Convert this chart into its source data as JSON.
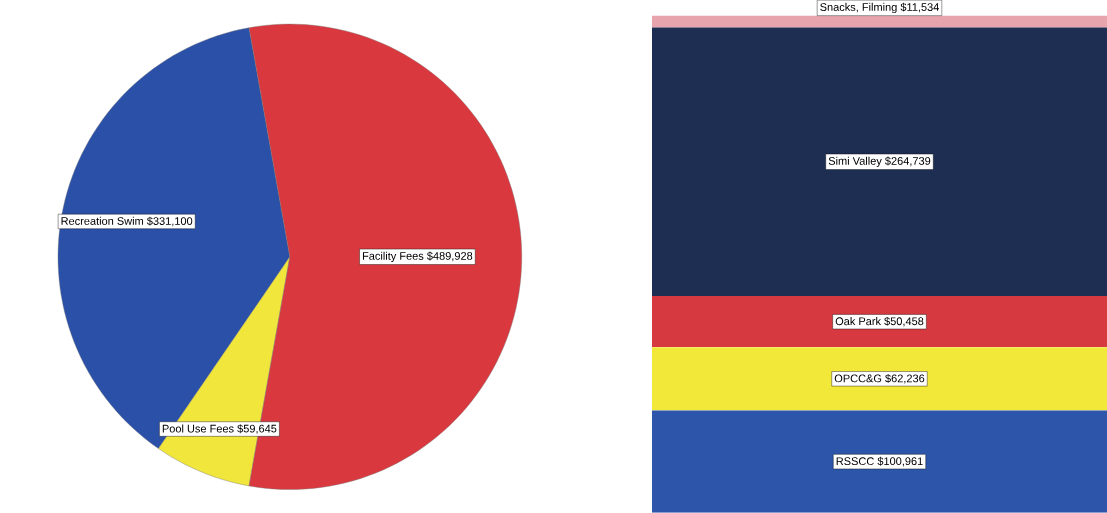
{
  "chart_data": [
    {
      "type": "pie",
      "categories": [
        "Recreation Swim",
        "Pool Use Fees",
        "Facility Fees"
      ],
      "values": [
        331100,
        59645,
        489928
      ],
      "value_labels": [
        "$331,100",
        "$59,645",
        "$489,928"
      ],
      "colors": [
        "#2b50a8",
        "#f0e63c",
        "#d9393e"
      ]
    },
    {
      "type": "bar",
      "stacked": true,
      "categories": [
        null
      ],
      "series": [
        {
          "name": "RSSCC",
          "color": "#2d55aa",
          "values": [
            100961
          ],
          "value_labels": [
            "$100,961"
          ]
        },
        {
          "name": "OPCC&G",
          "color": "#f2e83a",
          "values": [
            62236
          ],
          "value_labels": [
            "$62,236"
          ]
        },
        {
          "name": "Oak Park",
          "color": "#d63a40",
          "values": [
            50458
          ],
          "value_labels": [
            "$50,458"
          ]
        },
        {
          "name": "Simi Valley",
          "color": "#1e2d52",
          "values": [
            264739
          ],
          "value_labels": [
            "$264,739"
          ]
        },
        {
          "name": "Snacks, Filming",
          "color": "#e8a4ac",
          "values": [
            11534
          ],
          "value_labels": [
            "$11,534"
          ]
        }
      ]
    }
  ]
}
